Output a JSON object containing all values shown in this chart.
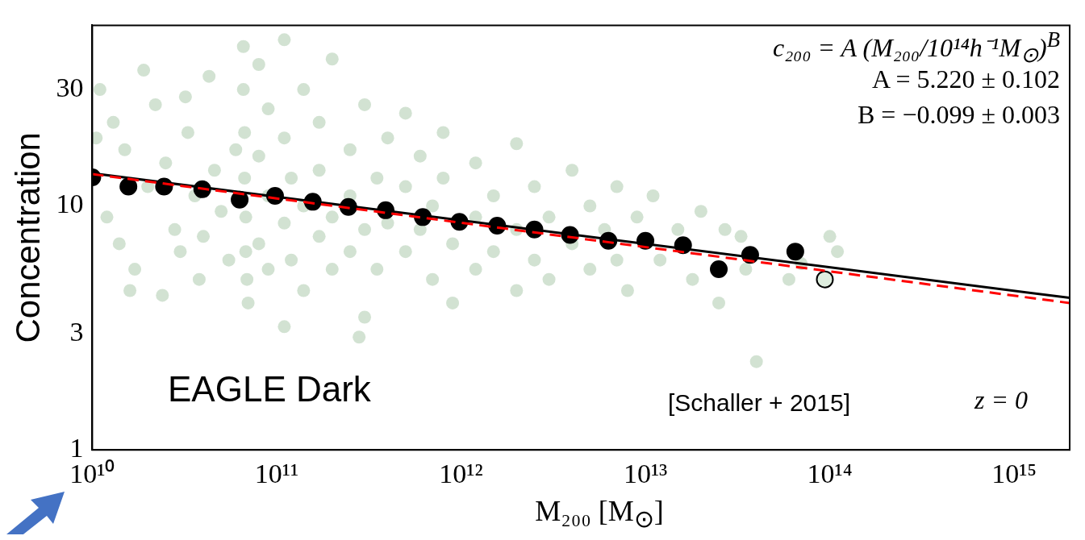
{
  "chart_data": {
    "type": "scatter",
    "xlabel": "M₂₀₀ [M$_{⊙}$]",
    "ylabel": "Concentration",
    "log": "xy",
    "xlim": [
      10000000000.0,
      2000000000000000.0
    ],
    "ylim": [
      1,
      55
    ],
    "xticks": [
      {
        "value": 10000000000.0,
        "label": "10¹⁰"
      },
      {
        "value": 100000000000.0,
        "label": "10¹¹"
      },
      {
        "value": 1000000000000.0,
        "label": "10¹²"
      },
      {
        "value": 10000000000000.0,
        "label": "10¹³"
      },
      {
        "value": 100000000000000.0,
        "label": "10¹⁴"
      },
      {
        "value": 1000000000000000.0,
        "label": "10¹⁵"
      }
    ],
    "yticks": [
      1,
      3,
      10,
      30
    ],
    "grid": false,
    "legend": false,
    "series": [
      {
        "marker": "circle",
        "color": "#1e6e1e",
        "x": [
          11000000000.0,
          13000000000.0,
          15000000000.0,
          12000000000.0,
          14000000000.0,
          17000000000.0,
          20000000000.0,
          22000000000.0,
          25000000000.0,
          28000000000.0,
          30000000000.0,
          33000000000.0,
          36000000000.0,
          40000000000.0,
          43000000000.0,
          46000000000.0,
          50000000000.0,
          55000000000.0,
          60000000000.0,
          16000000000.0,
          24000000000.0,
          38000000000.0,
          10500000000.0,
          19000000000.0,
          32000000000.0,
          66000000000.0,
          66000000000.0,
          67000000000.0,
          67000000000.0,
          68000000000.0,
          68000000000.0,
          69000000000.0,
          70000000000.0,
          80000000000.0,
          80000000000.0,
          80000000000.0,
          90000000000.0,
          90000000000.0,
          90000000000.0,
          110000000000.0,
          110000000000.0,
          110000000000.0,
          120000000000.0,
          120000000000.0,
          140000000000.0,
          140000000000.0,
          140000000000.0,
          170000000000.0,
          170000000000.0,
          170000000000.0,
          200000000000.0,
          200000000000.0,
          200000000000.0,
          250000000000.0,
          250000000000.0,
          250000000000.0,
          300000000000.0,
          300000000000.0,
          300000000000.0,
          350000000000.0,
          350000000000.0,
          400000000000.0,
          400000000000.0,
          500000000000.0,
          500000000000.0,
          500000000000.0,
          600000000000.0,
          600000000000.0,
          700000000000.0,
          700000000000.0,
          800000000000.0,
          800000000000.0,
          900000000000.0,
          900000000000.0,
          1200000000000.0,
          1200000000000.0,
          1200000000000.0,
          1500000000000.0,
          1500000000000.0,
          2000000000000.0,
          2000000000000.0,
          2000000000000.0,
          2500000000000.0,
          2500000000000.0,
          3000000000000.0,
          3000000000000.0,
          4000000000000.0,
          4000000000000.0,
          5000000000000.0,
          5000000000000.0,
          6000000000000.0,
          7000000000000.0,
          7000000000000.0,
          8000000000000.0,
          9000000000000.0,
          11000000000000.0,
          12000000000000.0,
          15000000000000.0,
          18000000000000.0,
          20000000000000.0,
          25000000000000.0,
          27000000000000.0,
          33000000000000.0,
          35000000000000.0,
          40000000000000.0,
          60000000000000.0,
          70000000000000.0,
          100000000000000.0,
          110000000000000.0,
          280000000000.0,
          110000000000.0
        ],
        "values": [
          30,
          22,
          17,
          9,
          7,
          5.5,
          12,
          26,
          15,
          8,
          6.5,
          20,
          11,
          7.5,
          34,
          14,
          9.5,
          6,
          17,
          4.5,
          4.3,
          5,
          19,
          36,
          28,
          45,
          30,
          20,
          13,
          9,
          6.5,
          5,
          4,
          38,
          16,
          7,
          25,
          11,
          5.5,
          48,
          19,
          8.5,
          13,
          6,
          30,
          10,
          4.5,
          22,
          14,
          7.5,
          40,
          9,
          5.5,
          17,
          11,
          6.5,
          26,
          8,
          3.5,
          13,
          5.5,
          19,
          8.5,
          24,
          12,
          6.5,
          16,
          8,
          10,
          5,
          20,
          13,
          7,
          4,
          15,
          9,
          5.5,
          11,
          6.5,
          18,
          8,
          4.5,
          12,
          6,
          9,
          5,
          14,
          7,
          10,
          5.5,
          8,
          12,
          6,
          4.5,
          9,
          11,
          6,
          8,
          5,
          9.5,
          4,
          8,
          7.5,
          5.5,
          2.3,
          5,
          5.8,
          7.5,
          6.5,
          2.9,
          3.2
        ]
      },
      {
        "marker": "circle",
        "color": "#000000",
        "colors": [
          "#000000",
          "#000000",
          "#000000",
          "#000000",
          "#000000",
          "#000000",
          "#000000",
          "#000000",
          "#000000",
          "#000000",
          "#000000",
          "#000000",
          "#000000",
          "#000000",
          "#000000",
          "#000000",
          "#000000",
          "#000000",
          "#000000",
          "#000000",
          "#dfeedf"
        ],
        "x": [
          10000000000.0,
          15700000000.0,
          24500000000.0,
          39500000000.0,
          63000000000.0,
          98000000000.0,
          157000000000.0,
          245000000000.0,
          390000000000.0,
          620000000000.0,
          980000000000.0,
          1570000000000.0,
          2500000000000.0,
          3900000000000.0,
          6300000000000.0,
          10000000000000.0,
          16000000000000.0,
          25000000000000.0,
          37000000000000.0,
          65000000000000.0,
          94000000000000.0
        ],
        "values": [
          13.1,
          12.0,
          12.0,
          11.7,
          10.6,
          11.0,
          10.4,
          9.9,
          9.6,
          9.0,
          8.6,
          8.3,
          8.0,
          7.6,
          7.2,
          7.2,
          6.9,
          5.5,
          6.3,
          6.5,
          5.0
        ]
      },
      {
        "type": "line",
        "color": "#000000",
        "line_style": "solid",
        "x": [
          10000000000.0,
          2000000000000000.0
        ],
        "values": [
          13.6,
          4.2
        ]
      },
      {
        "type": "line",
        "color": "#ff0000",
        "line_style": "dashed",
        "x": [
          10000000000.0,
          2000000000000000.0
        ],
        "values": [
          13.5,
          4.0
        ]
      }
    ],
    "annotations": [
      "c₂₀₀ = A (M₂₀₀/10¹⁴h⁻¹M$_{⊙}$)$^{B}$",
      "A = 5.220 ± 0.102",
      "B = −0.099 ± 0.003",
      "EAGLE Dark",
      "[Schaller + 2015]",
      "z = 0"
    ]
  }
}
